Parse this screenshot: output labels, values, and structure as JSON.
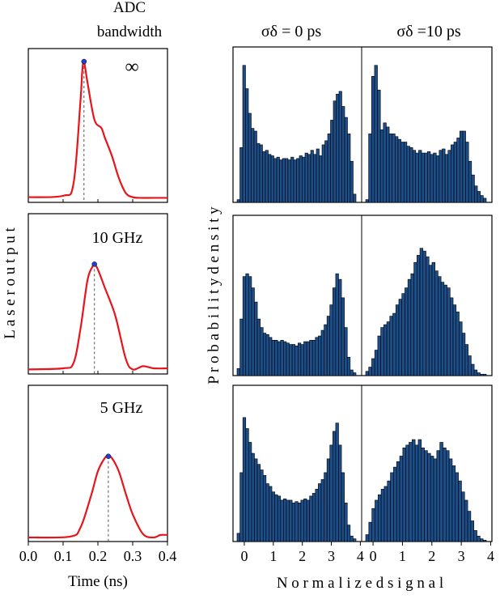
{
  "header": {
    "adc_line1": "ADC",
    "adc_line2": "bandwidth",
    "col1": "σδ = 0 ps",
    "col2": "σδ =10 ps"
  },
  "colors": {
    "pulse": "#e8141b",
    "marker": "#1f3fd6",
    "bar_fill": "#1c4e8a",
    "bar_edge": "#000000"
  },
  "chart_data": [
    {
      "type": "line",
      "id": "pulse_inf",
      "label": "∞",
      "x": [
        0.0,
        0.1,
        0.13,
        0.15,
        0.155,
        0.16,
        0.17,
        0.19,
        0.21,
        0.22,
        0.24,
        0.26,
        0.28,
        0.3,
        0.32,
        0.36,
        0.4
      ],
      "y": [
        0.02,
        0.03,
        0.12,
        0.72,
        0.93,
        1.0,
        0.85,
        0.58,
        0.52,
        0.45,
        0.32,
        0.16,
        0.05,
        0.02,
        0.015,
        0.015,
        0.015
      ],
      "peak": [
        0.16,
        1.0
      ],
      "xlim": [
        0.0,
        0.4
      ],
      "ylim": [
        0.0,
        1.0
      ]
    },
    {
      "type": "line",
      "id": "pulse_10",
      "label": "10 GHz",
      "x": [
        0.0,
        0.1,
        0.13,
        0.15,
        0.17,
        0.185,
        0.19,
        0.2,
        0.22,
        0.25,
        0.28,
        0.3,
        0.33,
        0.36,
        0.4
      ],
      "y": [
        0.02,
        0.03,
        0.08,
        0.4,
        0.85,
        0.98,
        1.0,
        0.95,
        0.78,
        0.52,
        0.12,
        0.02,
        0.05,
        0.03,
        0.03
      ],
      "peak": [
        0.19,
        1.0
      ],
      "xlim": [
        0.0,
        0.4
      ],
      "ylim": [
        0.0,
        1.0
      ]
    },
    {
      "type": "line",
      "id": "pulse_5",
      "label": "5 GHz",
      "x": [
        0.0,
        0.12,
        0.15,
        0.18,
        0.2,
        0.22,
        0.23,
        0.24,
        0.26,
        0.28,
        0.3,
        0.33,
        0.36,
        0.38,
        0.4
      ],
      "y": [
        0.02,
        0.03,
        0.14,
        0.52,
        0.82,
        0.98,
        1.0,
        0.98,
        0.82,
        0.55,
        0.3,
        0.06,
        0.02,
        0.05,
        0.05
      ],
      "peak": [
        0.23,
        1.0
      ],
      "xlim": [
        0.0,
        0.4
      ],
      "ylim": [
        0.0,
        1.0
      ]
    },
    {
      "type": "bar",
      "id": "hist_0ps_inf",
      "x_start": 0.0,
      "bin_width": 0.1,
      "xlim": [
        -0.45,
        2.3
      ],
      "ylim": [
        0,
        1.0
      ],
      "values": [
        0.02,
        0.4,
        1.0,
        0.83,
        0.65,
        0.54,
        0.52,
        0.43,
        0.42,
        0.37,
        0.38,
        0.35,
        0.34,
        0.32,
        0.33,
        0.31,
        0.32,
        0.32,
        0.31,
        0.33,
        0.31,
        0.32,
        0.34,
        0.33,
        0.36,
        0.35,
        0.38,
        0.35,
        0.39,
        0.34,
        0.42,
        0.45,
        0.5,
        0.6,
        0.74,
        0.79,
        0.81,
        0.7,
        0.62,
        0.5,
        0.3,
        0.06
      ]
    },
    {
      "type": "bar",
      "id": "hist_10ps_inf",
      "x_start": 0.0,
      "bin_width": 0.1,
      "xlim": [
        -0.45,
        2.3
      ],
      "ylim": [
        0,
        1.0
      ],
      "values": [
        0.02,
        0.5,
        0.92,
        1.0,
        0.82,
        0.53,
        0.58,
        0.55,
        0.5,
        0.5,
        0.48,
        0.46,
        0.44,
        0.44,
        0.41,
        0.4,
        0.38,
        0.36,
        0.38,
        0.36,
        0.36,
        0.37,
        0.35,
        0.36,
        0.34,
        0.38,
        0.39,
        0.35,
        0.38,
        0.42,
        0.44,
        0.47,
        0.52,
        0.52,
        0.44,
        0.3,
        0.2,
        0.12,
        0.08,
        0.05,
        0.03
      ]
    },
    {
      "type": "bar",
      "id": "hist_0ps_10ghz",
      "x_start": 0.0,
      "bin_width": 0.1,
      "xlim": [
        -0.45,
        2.3
      ],
      "ylim": [
        0,
        1.0
      ],
      "values": [
        0.05,
        0.4,
        0.7,
        0.72,
        0.7,
        0.62,
        0.52,
        0.4,
        0.34,
        0.3,
        0.29,
        0.27,
        0.25,
        0.25,
        0.24,
        0.25,
        0.24,
        0.23,
        0.22,
        0.22,
        0.21,
        0.23,
        0.22,
        0.24,
        0.24,
        0.25,
        0.25,
        0.27,
        0.28,
        0.32,
        0.36,
        0.42,
        0.5,
        0.62,
        0.72,
        0.68,
        0.55,
        0.34,
        0.13,
        0.04,
        0.02
      ]
    },
    {
      "type": "bar",
      "id": "hist_10ps_10ghz",
      "x_start": 0.0,
      "bin_width": 0.1,
      "xlim": [
        -0.45,
        2.3
      ],
      "ylim": [
        0,
        1.0
      ],
      "values": [
        0.03,
        0.06,
        0.12,
        0.18,
        0.28,
        0.34,
        0.36,
        0.38,
        0.42,
        0.44,
        0.5,
        0.54,
        0.58,
        0.62,
        0.68,
        0.72,
        0.8,
        0.85,
        0.9,
        0.88,
        0.84,
        0.78,
        0.8,
        0.74,
        0.7,
        0.66,
        0.64,
        0.62,
        0.55,
        0.5,
        0.45,
        0.38,
        0.3,
        0.22,
        0.14,
        0.08,
        0.04,
        0.02,
        0.01,
        0.01
      ]
    },
    {
      "type": "bar",
      "id": "hist_0ps_5ghz",
      "x_start": 0.0,
      "bin_width": 0.1,
      "xlim": [
        -0.45,
        2.3
      ],
      "ylim": [
        0,
        1.0
      ],
      "values": [
        0.06,
        0.5,
        0.9,
        0.82,
        0.72,
        0.64,
        0.6,
        0.56,
        0.52,
        0.48,
        0.42,
        0.4,
        0.36,
        0.34,
        0.33,
        0.3,
        0.31,
        0.3,
        0.3,
        0.28,
        0.29,
        0.28,
        0.3,
        0.31,
        0.3,
        0.33,
        0.35,
        0.38,
        0.42,
        0.45,
        0.5,
        0.6,
        0.7,
        0.8,
        0.86,
        0.7,
        0.5,
        0.28,
        0.12,
        0.04,
        0.02
      ]
    },
    {
      "type": "bar",
      "id": "hist_10ps_5ghz",
      "x_start": 0.0,
      "bin_width": 0.1,
      "xlim": [
        -0.45,
        2.3
      ],
      "ylim": [
        0,
        1.0
      ],
      "values": [
        0.05,
        0.14,
        0.24,
        0.3,
        0.34,
        0.38,
        0.4,
        0.44,
        0.5,
        0.54,
        0.58,
        0.62,
        0.68,
        0.7,
        0.72,
        0.74,
        0.7,
        0.74,
        0.68,
        0.66,
        0.64,
        0.62,
        0.6,
        0.66,
        0.72,
        0.68,
        0.66,
        0.6,
        0.55,
        0.5,
        0.44,
        0.36,
        0.3,
        0.22,
        0.15,
        0.08,
        0.04,
        0.02,
        0.01
      ]
    }
  ],
  "axes": {
    "time_ticks": [
      "0.0",
      "0.1",
      "0.2",
      "0.3",
      "0.4"
    ],
    "time_label": "Time (ns)",
    "laser_ylabel": "L a s e r   o u t p u t",
    "prob_ylabel": "P r o b a b i l i t y   d e n s i t y",
    "signal_ticks_left": [
      "0",
      "1",
      "2",
      "3",
      "4"
    ],
    "signal_ticks_right": [
      "0",
      "1",
      "2",
      "3",
      "4"
    ],
    "signal_label": "N o r m a l i z e d   s i g n a l"
  }
}
